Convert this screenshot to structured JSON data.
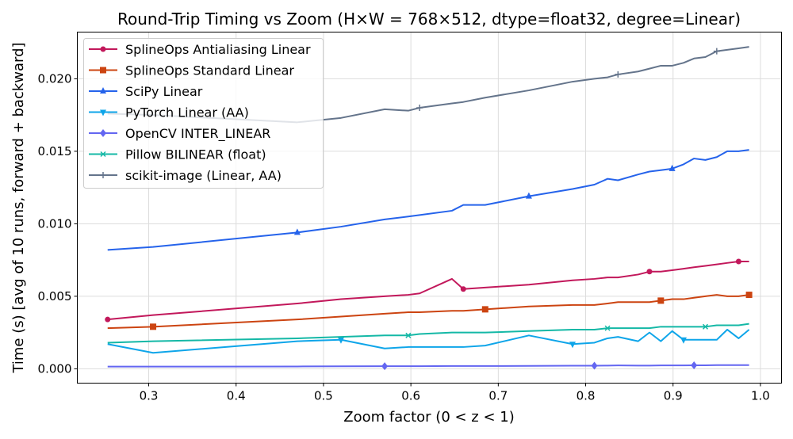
{
  "chart_data": {
    "type": "line",
    "title": "Round-Trip Timing vs Zoom  (H×W = 768×512, dtype=float32, degree=Linear)",
    "xlabel": "Zoom factor (0 < z < 1)",
    "ylabel": "Time (s)  [avg of 10 runs, forward + backward]",
    "xlim": [
      0.2183,
      1.0241
    ],
    "ylim": [
      -0.00099,
      0.02322
    ],
    "xticks": [
      0.3,
      0.4,
      0.5,
      0.6,
      0.7,
      0.8,
      0.9,
      1.0
    ],
    "xtick_labels": [
      "0.3",
      "0.4",
      "0.5",
      "0.6",
      "0.7",
      "0.8",
      "0.9",
      "1.0"
    ],
    "yticks": [
      0.0,
      0.005,
      0.01,
      0.015,
      0.02
    ],
    "ytick_labels": [
      "0.000",
      "0.005",
      "0.010",
      "0.015",
      "0.020"
    ],
    "grid": true,
    "legend_position": "top-left",
    "x": [
      0.253,
      0.305,
      0.47,
      0.52,
      0.57,
      0.597,
      0.61,
      0.647,
      0.66,
      0.685,
      0.735,
      0.785,
      0.81,
      0.825,
      0.837,
      0.86,
      0.873,
      0.886,
      0.899,
      0.912,
      0.924,
      0.937,
      0.95,
      0.962,
      0.975,
      0.987
    ],
    "series": [
      {
        "name": "SplineOps Antialiasing Linear",
        "color": "#c2185b",
        "marker": "circle",
        "marker_offset": 0,
        "values": [
          0.0034,
          0.0037,
          0.0045,
          0.0048,
          0.005,
          0.0051,
          0.0052,
          0.0062,
          0.0055,
          0.0056,
          0.0058,
          0.0061,
          0.0062,
          0.0063,
          0.0063,
          0.0065,
          0.0067,
          0.0067,
          0.0068,
          0.0069,
          0.007,
          0.0071,
          0.0072,
          0.0073,
          0.0074,
          0.0074
        ]
      },
      {
        "name": "SplineOps Standard Linear",
        "color": "#cc4411",
        "marker": "square",
        "marker_offset": 1,
        "values": [
          0.0028,
          0.0029,
          0.0034,
          0.0036,
          0.0038,
          0.0039,
          0.0039,
          0.004,
          0.004,
          0.0041,
          0.0043,
          0.0044,
          0.0044,
          0.0045,
          0.0046,
          0.0046,
          0.0046,
          0.0047,
          0.0048,
          0.0048,
          0.0049,
          0.005,
          0.0051,
          0.005,
          0.005,
          0.0051
        ]
      },
      {
        "name": "SciPy Linear",
        "color": "#2563eb",
        "marker": "triangle-up",
        "marker_offset": 2,
        "values": [
          0.0082,
          0.0084,
          0.0094,
          0.0098,
          0.0103,
          0.0105,
          0.0106,
          0.0109,
          0.0113,
          0.0113,
          0.0119,
          0.0124,
          0.0127,
          0.0131,
          0.013,
          0.0134,
          0.0136,
          0.0137,
          0.0138,
          0.0141,
          0.0145,
          0.0144,
          0.0146,
          0.015,
          0.015,
          0.0151
        ]
      },
      {
        "name": "PyTorch Linear (AA)",
        "color": "#0ea5e9",
        "marker": "triangle-down",
        "marker_offset": 3,
        "values": [
          0.0017,
          0.0011,
          0.0019,
          0.002,
          0.0014,
          0.0015,
          0.0015,
          0.0015,
          0.0015,
          0.0016,
          0.0023,
          0.0017,
          0.0018,
          0.0021,
          0.0022,
          0.0019,
          0.0025,
          0.0019,
          0.0026,
          0.002,
          0.002,
          0.002,
          0.002,
          0.0027,
          0.0021,
          0.0027
        ]
      },
      {
        "name": "OpenCV INTER_LINEAR",
        "color": "#6366f1",
        "marker": "diamond",
        "marker_offset": 4,
        "values": [
          0.00015,
          0.00015,
          0.00016,
          0.00017,
          0.00018,
          0.00018,
          0.00018,
          0.00019,
          0.00019,
          0.00019,
          0.0002,
          0.00021,
          0.00021,
          0.00022,
          0.00023,
          0.00022,
          0.00022,
          0.00023,
          0.00023,
          0.00023,
          0.00024,
          0.00024,
          0.00025,
          0.00025,
          0.00025,
          0.00025
        ]
      },
      {
        "name": "Pillow BILINEAR (float)",
        "color": "#14b8a6",
        "marker": "x",
        "marker_offset": 5,
        "values": [
          0.0018,
          0.0019,
          0.0021,
          0.0022,
          0.0023,
          0.0023,
          0.0024,
          0.0025,
          0.0025,
          0.0025,
          0.0026,
          0.0027,
          0.0027,
          0.0028,
          0.0028,
          0.0028,
          0.0028,
          0.0029,
          0.0029,
          0.0029,
          0.0029,
          0.0029,
          0.003,
          0.003,
          0.003,
          0.0031
        ]
      },
      {
        "name": "scikit-image (Linear, AA)",
        "color": "#64748b",
        "marker": "plus",
        "marker_offset": 6,
        "values": [
          0.0176,
          0.0175,
          0.017,
          0.0173,
          0.0179,
          0.0178,
          0.018,
          0.0183,
          0.0184,
          0.0187,
          0.0192,
          0.0198,
          0.02,
          0.0201,
          0.0203,
          0.0205,
          0.0207,
          0.0209,
          0.0209,
          0.0211,
          0.0214,
          0.0215,
          0.0219,
          0.022,
          0.0221,
          0.0222
        ]
      }
    ],
    "marker_every": 8
  }
}
